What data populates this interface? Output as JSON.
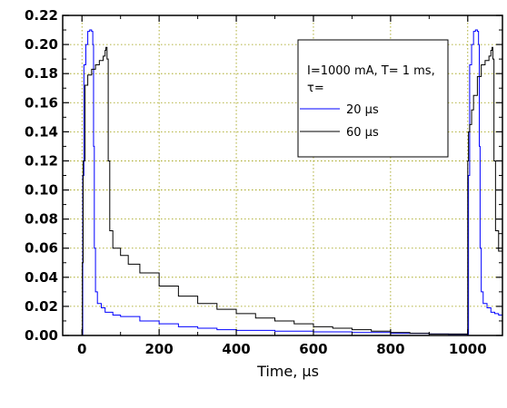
{
  "chart_data": {
    "type": "line",
    "title": "",
    "xlabel": "Time, µs",
    "ylabel": "",
    "xlim": [
      -50,
      1090
    ],
    "ylim": [
      0,
      0.22
    ],
    "x_ticks": [
      "0",
      "200",
      "400",
      "600",
      "800",
      "1000"
    ],
    "x_tick_values": [
      0,
      200,
      400,
      600,
      800,
      1000
    ],
    "y_ticks": [
      "0.00",
      "0.02",
      "0.04",
      "0.06",
      "0.08",
      "0.10",
      "0.12",
      "0.14",
      "0.16",
      "0.18",
      "0.20",
      "0.22"
    ],
    "y_tick_values": [
      0,
      0.02,
      0.04,
      0.06,
      0.08,
      0.1,
      0.12,
      0.14,
      0.16,
      0.18,
      0.2,
      0.22
    ],
    "grid": true,
    "legend": {
      "placement": "top-right",
      "header_line1": "I=1000 mA, T= 1 ms,",
      "header_line2": "τ="
    },
    "series": [
      {
        "name": "20 µs",
        "color": "#0000ff",
        "x": [
          -5,
          0,
          2,
          5,
          10,
          15,
          20,
          25,
          28,
          30,
          32,
          35,
          40,
          50,
          60,
          80,
          100,
          150,
          200,
          250,
          300,
          350,
          400,
          500,
          600,
          700,
          800,
          900,
          950,
          980,
          1000,
          1002,
          1005,
          1010,
          1015,
          1020,
          1025,
          1028,
          1030,
          1032,
          1035,
          1040,
          1050,
          1060,
          1070,
          1080,
          1090
        ],
        "y": [
          0,
          0,
          0.11,
          0.186,
          0.2,
          0.209,
          0.21,
          0.209,
          0.2,
          0.13,
          0.06,
          0.03,
          0.022,
          0.019,
          0.016,
          0.014,
          0.013,
          0.01,
          0.008,
          0.006,
          0.005,
          0.004,
          0.0035,
          0.003,
          0.0025,
          0.002,
          0.0015,
          0.001,
          0.0008,
          0.0008,
          0.0008,
          0.11,
          0.186,
          0.2,
          0.209,
          0.21,
          0.209,
          0.2,
          0.13,
          0.06,
          0.03,
          0.022,
          0.019,
          0.016,
          0.015,
          0.014,
          0.014
        ]
      },
      {
        "name": "60 µs",
        "color": "#000000",
        "x": [
          -5,
          0,
          1,
          3,
          8,
          15,
          25,
          35,
          45,
          55,
          60,
          62,
          65,
          68,
          72,
          80,
          100,
          120,
          150,
          200,
          250,
          300,
          350,
          400,
          450,
          500,
          550,
          600,
          650,
          700,
          750,
          800,
          850,
          900,
          950,
          980,
          998,
          1000,
          1002,
          1005,
          1010,
          1015,
          1025,
          1035,
          1045,
          1055,
          1060,
          1063,
          1065,
          1068,
          1072,
          1080,
          1090
        ],
        "y": [
          0,
          0,
          0.05,
          0.12,
          0.172,
          0.179,
          0.183,
          0.186,
          0.189,
          0.192,
          0.196,
          0.198,
          0.19,
          0.12,
          0.072,
          0.06,
          0.055,
          0.049,
          0.043,
          0.034,
          0.027,
          0.022,
          0.018,
          0.015,
          0.012,
          0.01,
          0.008,
          0.006,
          0.005,
          0.004,
          0.003,
          0.002,
          0.0015,
          0.001,
          0.001,
          0.001,
          0.001,
          0.12,
          0.14,
          0.145,
          0.155,
          0.165,
          0.178,
          0.186,
          0.189,
          0.192,
          0.196,
          0.198,
          0.19,
          0.12,
          0.072,
          0.058,
          0.052
        ]
      }
    ]
  }
}
